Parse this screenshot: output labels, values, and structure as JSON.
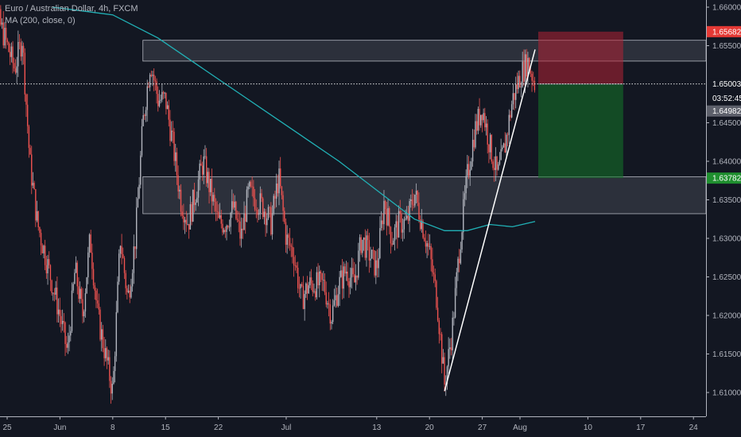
{
  "legend": {
    "line1": "Euro / Australian Dollar, 4h, FXCM",
    "line2": "MA (200, close, 0)"
  },
  "chart_data": {
    "type": "candlestick",
    "symbol": "EURAUD",
    "title": "Euro / Australian Dollar, 4h, FXCM",
    "indicator": "MA (200, close, 0)",
    "y_ticks": [
      "1.66000",
      "1.65500",
      "1.65000",
      "1.64500",
      "1.64000",
      "1.63500",
      "1.63000",
      "1.62500",
      "1.62000",
      "1.61500",
      "1.61000"
    ],
    "x_ticks": [
      "25",
      "Jun",
      "8",
      "15",
      "22",
      "Jul",
      "13",
      "20",
      "27",
      "Aug",
      "10",
      "17",
      "24"
    ],
    "ylim": [
      1.605,
      1.6634
    ],
    "price_tags": {
      "stop": "1.65682",
      "current": "1.65003",
      "countdown": "03:52:45",
      "last": "1.64982",
      "target": "1.63782"
    },
    "zones": [
      {
        "name": "resistance",
        "from": 1.653,
        "to": 1.6557
      },
      {
        "name": "support",
        "from": 1.6332,
        "to": 1.638
      }
    ],
    "trendline": [
      [
        "Jul 22",
        1.6102
      ],
      [
        "Aug 3",
        1.6545
      ]
    ],
    "position": {
      "type": "short",
      "entry": 1.65003,
      "stop": 1.65682,
      "target": 1.63782
    },
    "price_path": [
      [
        "May 22",
        1.66
      ],
      [
        "May 24",
        1.658
      ],
      [
        "May 26",
        1.652
      ],
      [
        "May 27",
        1.656
      ],
      [
        "May 28",
        1.64
      ],
      [
        "May 29",
        1.632
      ],
      [
        "Jun 1",
        1.62
      ],
      [
        "Jun 2",
        1.615
      ],
      [
        "Jun 3",
        1.626
      ],
      [
        "Jun 4",
        1.62
      ],
      [
        "Jun 5",
        1.63
      ],
      [
        "Jun 6",
        1.62
      ],
      [
        "Jun 8",
        1.61
      ],
      [
        "Jun 9",
        1.63
      ],
      [
        "Jun 10",
        1.622
      ],
      [
        "Jun 11",
        1.63
      ],
      [
        "Jun 12",
        1.645
      ],
      [
        "Jun 13",
        1.653
      ],
      [
        "Jun 14",
        1.648
      ],
      [
        "Jun 15",
        1.648
      ],
      [
        "Jun 16",
        1.642
      ],
      [
        "Jun 17",
        1.635
      ],
      [
        "Jun 18",
        1.632
      ],
      [
        "Jun 19",
        1.636
      ],
      [
        "Jun 20",
        1.64
      ],
      [
        "Jun 22",
        1.632
      ],
      [
        "Jun 23",
        1.632
      ],
      [
        "Jun 24",
        1.634
      ],
      [
        "Jun 25",
        1.63
      ],
      [
        "Jun 26",
        1.636
      ],
      [
        "Jun 28",
        1.634
      ],
      [
        "Jun 29",
        1.632
      ],
      [
        "Jun 30",
        1.638
      ],
      [
        "Jul 1",
        1.63
      ],
      [
        "Jul 2",
        1.628
      ],
      [
        "Jul 3",
        1.622
      ],
      [
        "Jul 4",
        1.624
      ],
      [
        "Jul 6",
        1.624
      ],
      [
        "Jul 7",
        1.62
      ],
      [
        "Jul 8",
        1.624
      ],
      [
        "Jul 9",
        1.626
      ],
      [
        "Jul 10",
        1.624
      ],
      [
        "Jul 11",
        1.63
      ],
      [
        "Jul 13",
        1.626
      ],
      [
        "Jul 14",
        1.635
      ],
      [
        "Jul 15",
        1.63
      ],
      [
        "Jul 16",
        1.632
      ],
      [
        "Jul 17",
        1.632
      ],
      [
        "Jul 18",
        1.636
      ],
      [
        "Jul 20",
        1.628
      ],
      [
        "Jul 21",
        1.622
      ],
      [
        "Jul 22",
        1.611
      ],
      [
        "Jul 23",
        1.618
      ],
      [
        "Jul 24",
        1.629
      ],
      [
        "Jul 25",
        1.638
      ],
      [
        "Jul 26",
        1.644
      ],
      [
        "Jul 27",
        1.647
      ],
      [
        "Jul 28",
        1.642
      ],
      [
        "Jul 29",
        1.638
      ],
      [
        "Jul 30",
        1.642
      ],
      [
        "Jul 31",
        1.648
      ],
      [
        "Aug 1",
        1.651
      ],
      [
        "Aug 2",
        1.653
      ],
      [
        "Aug 3",
        1.65
      ]
    ],
    "ma200": [
      [
        "May 31",
        1.66
      ],
      [
        "Jun 4",
        1.6595
      ],
      [
        "Jun 8",
        1.659
      ],
      [
        "Jun 14",
        1.656
      ],
      [
        "Jun 20",
        1.652
      ],
      [
        "Jun 26",
        1.648
      ],
      [
        "Jul 2",
        1.644
      ],
      [
        "Jul 8",
        1.64
      ],
      [
        "Jul 14",
        1.6355
      ],
      [
        "Jul 18",
        1.6325
      ],
      [
        "Jul 22",
        1.631
      ],
      [
        "Jul 25",
        1.631
      ],
      [
        "Jul 28",
        1.6318
      ],
      [
        "Jul 31",
        1.6315
      ],
      [
        "Aug 3",
        1.6322
      ]
    ]
  }
}
